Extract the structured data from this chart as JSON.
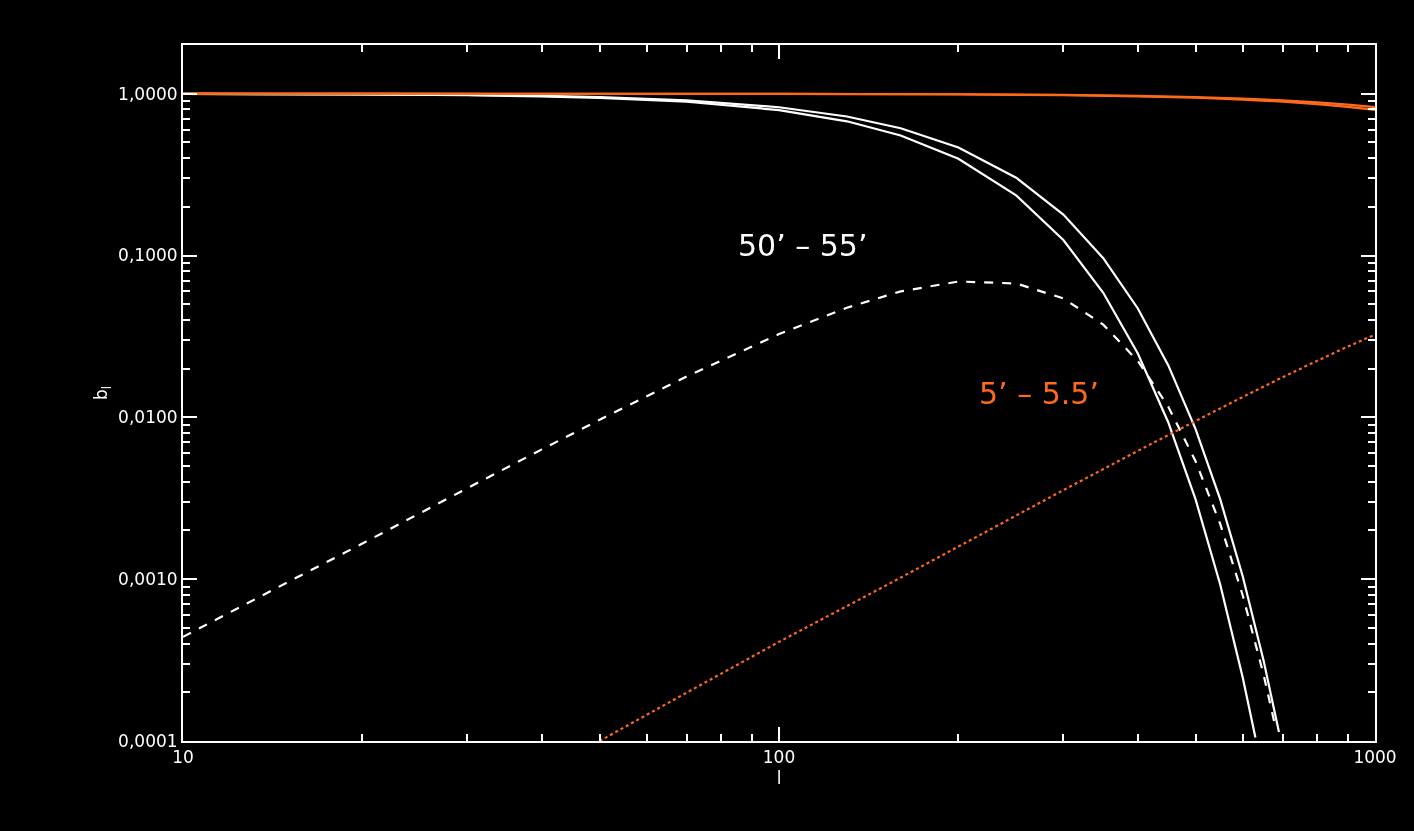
{
  "chart_data": {
    "type": "line",
    "xlabel": "l",
    "ylabel": "b$_{l}$",
    "log": "xy",
    "grid": false,
    "marker": "none",
    "xlim": [
      10,
      1000
    ],
    "xticks": [
      10,
      100,
      1000
    ],
    "ylim": [
      0.0001,
      2
    ],
    "yticks": [
      {
        "value": 0.0001,
        "label": "0,0001"
      },
      {
        "value": 0.001,
        "label": "0,0010"
      },
      {
        "value": 0.01,
        "label": "0,0100"
      },
      {
        "value": 0.1,
        "label": "0,1000"
      },
      {
        "value": 1,
        "label": "1,0000"
      }
    ],
    "annotations": [
      "50’ – 55’",
      "5’ – 5.5’"
    ],
    "series": [
      {
        "color": "#ffffff",
        "line_style": "solid",
        "x": [
          10,
          20,
          30,
          40,
          50,
          70,
          100,
          130,
          160,
          200,
          250,
          300,
          350,
          400,
          450,
          500,
          550,
          600,
          650,
          690
        ],
        "values": [
          0.99791,
          0.99203,
          0.98244,
          0.96924,
          0.95258,
          0.90967,
          0.825,
          0.7229,
          0.6122,
          0.465,
          0.3026,
          0.179,
          0.0963,
          0.0471,
          0.02094,
          0.00846,
          0.00311,
          0.001039,
          0.000316,
          0.0001135
        ]
      },
      {
        "color": "#ffffff",
        "line_style": "solid",
        "x": [
          10,
          20,
          30,
          40,
          50,
          70,
          100,
          130,
          160,
          200,
          250,
          300,
          350,
          400,
          450,
          500,
          550,
          600,
          630
        ],
        "values": [
          0.99747,
          0.99037,
          0.97879,
          0.9629,
          0.94292,
          0.89176,
          0.7923,
          0.6753,
          0.5522,
          0.3959,
          0.2354,
          0.1247,
          0.0589,
          0.02479,
          0.0093,
          0.00311,
          0.000925,
          0.000246,
          0.000105
        ]
      },
      {
        "color": "#ffffff",
        "line_style": "dashed",
        "x": [
          10,
          15,
          20,
          30,
          40,
          50,
          70,
          100,
          130,
          160,
          200,
          250,
          300,
          350,
          400,
          450,
          500,
          550,
          600,
          650,
          680
        ],
        "values": [
          0.00044,
          0.00096,
          0.00166,
          0.00365,
          0.00634,
          0.00966,
          0.01791,
          0.0327,
          0.0476,
          0.06,
          0.0691,
          0.0672,
          0.0543,
          0.0374,
          0.0223,
          0.01164,
          0.00535,
          0.00219,
          0.000793,
          0.000258,
          0.000124
        ]
      },
      {
        "color": "#ff6a1a",
        "line_style": "solid",
        "x": [
          10,
          20,
          50,
          100,
          200,
          300,
          400,
          500,
          600,
          700,
          800,
          900,
          1000
        ],
        "values": [
          0.99998,
          0.99992,
          0.99951,
          0.99808,
          0.99237,
          0.98295,
          0.96991,
          0.9534,
          0.93361,
          0.91076,
          0.88508,
          0.85687,
          0.82639
        ]
      },
      {
        "color": "#ff6a1a",
        "line_style": "solid",
        "x": [
          10,
          20,
          50,
          100,
          200,
          300,
          400,
          500,
          600,
          700,
          800,
          900,
          1000
        ],
        "values": [
          0.99997,
          0.9999,
          0.99941,
          0.99767,
          0.99078,
          0.9794,
          0.9637,
          0.9439,
          0.92024,
          0.89305,
          0.86269,
          0.82952,
          0.79393
        ]
      },
      {
        "color": "#ff6a1a",
        "line_style": "dotted",
        "x": [
          50,
          70,
          100,
          150,
          200,
          300,
          400,
          500,
          600,
          700,
          800,
          900,
          1000
        ],
        "values": [
          0.0001,
          0.000199,
          0.00041,
          0.0009,
          0.00159,
          0.00355,
          0.00621,
          0.0095,
          0.01337,
          0.01771,
          0.02239,
          0.02735,
          0.03246
        ]
      }
    ]
  }
}
